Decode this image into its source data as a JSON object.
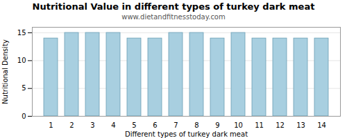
{
  "chart_data": {
    "type": "bar",
    "title": "Nutritional Value in different types of turkey dark meat",
    "subtitle": "www.dietandfitnesstoday.com",
    "xlabel": "Different types of turkey dark meat",
    "ylabel": "Nutritional Density",
    "categories": [
      1,
      2,
      3,
      4,
      5,
      6,
      7,
      8,
      9,
      10,
      11,
      12,
      13,
      14
    ],
    "values": [
      14,
      15,
      15,
      15,
      14,
      14,
      15,
      15,
      14,
      15,
      14,
      14,
      14,
      14
    ],
    "color": "#a8cfe0",
    "ylim": [
      0,
      16
    ],
    "yticks": [
      0,
      5,
      10,
      15
    ],
    "grid": true
  }
}
